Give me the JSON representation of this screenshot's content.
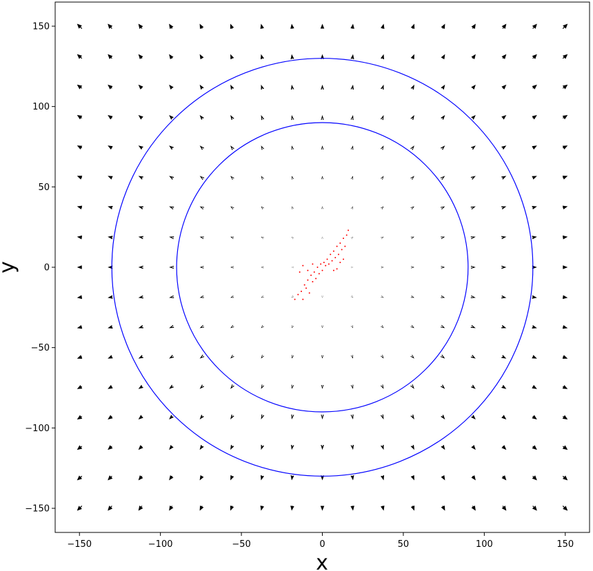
{
  "chart_data": {
    "type": "scatter",
    "title": "",
    "xlabel": "x",
    "ylabel": "y",
    "xlim": [
      -165,
      165
    ],
    "ylim": [
      -165,
      165
    ],
    "xticks": [
      -150,
      -100,
      -50,
      0,
      50,
      100,
      150
    ],
    "yticks": [
      -150,
      -100,
      -50,
      0,
      50,
      100,
      150
    ],
    "xtick_labels": [
      "−150",
      "−100",
      "−50",
      "0",
      "50",
      "100",
      "150"
    ],
    "ytick_labels": [
      "−150",
      "−100",
      "−50",
      "0",
      "50",
      "100",
      "150"
    ],
    "grid": false,
    "colors": {
      "circles": "#0000ff",
      "points": "#ff0000",
      "arrows": "#000000"
    },
    "circles": [
      {
        "center": [
          0,
          0
        ],
        "radius": 90
      },
      {
        "center": [
          0,
          0
        ],
        "radius": 130
      }
    ],
    "quiver": {
      "x_start": -150,
      "x_end": 150,
      "y_start": -150,
      "y_end": 150,
      "n": 17,
      "field": "radial, magnitude proportional to distance from origin"
    },
    "scatter_cluster": {
      "points": [
        [
          -17,
          -20
        ],
        [
          -15,
          -17
        ],
        [
          -13,
          -15
        ],
        [
          -12,
          -20
        ],
        [
          -11,
          -11
        ],
        [
          -10,
          -13
        ],
        [
          -9,
          -8
        ],
        [
          -8,
          -16
        ],
        [
          -7,
          -5
        ],
        [
          -6,
          -9
        ],
        [
          -5,
          -3
        ],
        [
          -4,
          -7
        ],
        [
          -3,
          0
        ],
        [
          -2,
          -4
        ],
        [
          -1,
          2
        ],
        [
          0,
          -2
        ],
        [
          1,
          3
        ],
        [
          2,
          1
        ],
        [
          3,
          5
        ],
        [
          4,
          2
        ],
        [
          5,
          8
        ],
        [
          6,
          4
        ],
        [
          7,
          10
        ],
        [
          8,
          6
        ],
        [
          9,
          13
        ],
        [
          10,
          8
        ],
        [
          11,
          15
        ],
        [
          12,
          11
        ],
        [
          13,
          18
        ],
        [
          14,
          13
        ],
        [
          15,
          20
        ],
        [
          16,
          23
        ],
        [
          -14,
          -3
        ],
        [
          -12,
          1
        ],
        [
          -9,
          -2
        ],
        [
          -6,
          2
        ],
        [
          9,
          -1
        ],
        [
          11,
          3
        ],
        [
          13,
          5
        ],
        [
          7,
          -2
        ]
      ]
    }
  }
}
